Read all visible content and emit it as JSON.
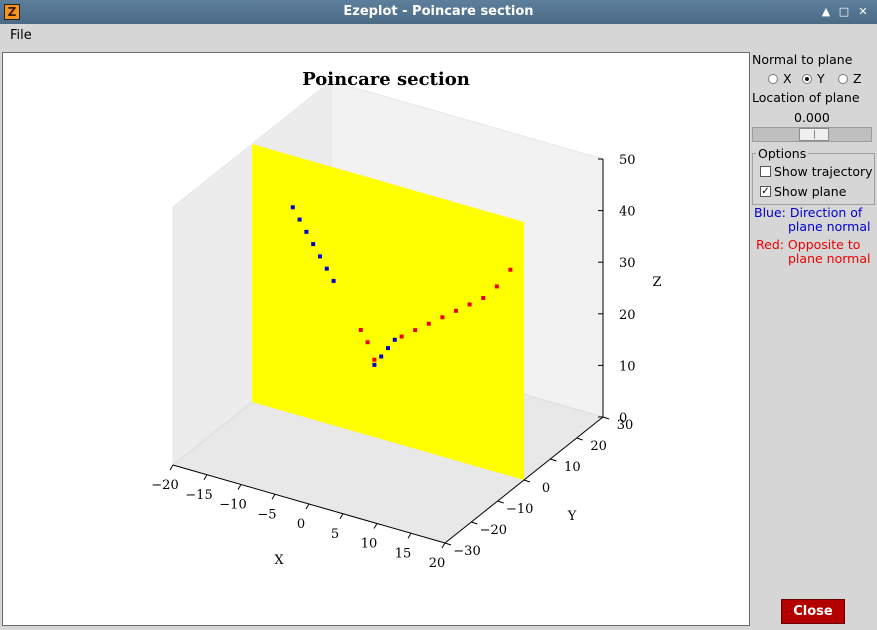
{
  "window": {
    "title": "Ezeplot - Poincare section",
    "app_icon": "Z",
    "buttons": [
      "maximize-icon",
      "restore-icon",
      "close-icon"
    ]
  },
  "menu": {
    "file": "File"
  },
  "controls": {
    "normal_label": "Normal to plane",
    "axes": [
      {
        "label": "X",
        "selected": false
      },
      {
        "label": "Y",
        "selected": true
      },
      {
        "label": "Z",
        "selected": false
      }
    ],
    "location_label": "Location of plane",
    "location_value": "0.000",
    "slider_fraction": 0.5,
    "options_label": "Options",
    "show_trajectory": {
      "label": "Show trajectory",
      "checked": false
    },
    "show_plane": {
      "label": "Show plane",
      "checked": true
    },
    "blue_note_1": "Blue: Direction of",
    "blue_note_2": "plane normal",
    "red_note_1": "Red: Opposite to",
    "red_note_2": "plane normal",
    "close_label": "Close"
  },
  "colors": {
    "blue": "#0000cc",
    "red": "#ee0000",
    "plane": "#ffff00",
    "close": "#b50000"
  },
  "chart_data": {
    "type": "scatter",
    "projection": "3d",
    "title": "Poincare section",
    "xlabel": "X",
    "ylabel": "Y",
    "zlabel": "Z",
    "xlim": [
      -20,
      20
    ],
    "ylim": [
      -30,
      30
    ],
    "zlim": [
      0,
      50
    ],
    "xticks": [
      "−20",
      "−15",
      "−10",
      "−5",
      "0",
      "5",
      "10",
      "15",
      "20"
    ],
    "yticks": [
      "−30",
      "−20",
      "−10",
      "0",
      "10",
      "20",
      "30"
    ],
    "zticks": [
      "0",
      "10",
      "20",
      "30",
      "40",
      "50"
    ],
    "plane_y": 0,
    "series": [
      {
        "color": "blue",
        "points": [
          [
            -14,
            0,
            40
          ],
          [
            -13,
            0,
            38
          ],
          [
            -12,
            0,
            36
          ],
          [
            -11,
            0,
            34
          ],
          [
            -10,
            0,
            32
          ],
          [
            -9,
            0,
            30
          ],
          [
            -8,
            0,
            28
          ],
          [
            -2,
            0,
            14
          ],
          [
            -1,
            0,
            16
          ],
          [
            0,
            0,
            18
          ],
          [
            1,
            0,
            20
          ]
        ]
      },
      {
        "color": "red",
        "points": [
          [
            -4,
            0,
            20
          ],
          [
            -3,
            0,
            18
          ],
          [
            -2,
            0,
            15
          ],
          [
            2,
            0,
            21
          ],
          [
            4,
            0,
            23
          ],
          [
            6,
            0,
            25
          ],
          [
            8,
            0,
            27
          ],
          [
            10,
            0,
            29
          ],
          [
            12,
            0,
            31
          ],
          [
            14,
            0,
            33
          ],
          [
            16,
            0,
            36
          ],
          [
            18,
            0,
            40
          ]
        ]
      }
    ]
  }
}
